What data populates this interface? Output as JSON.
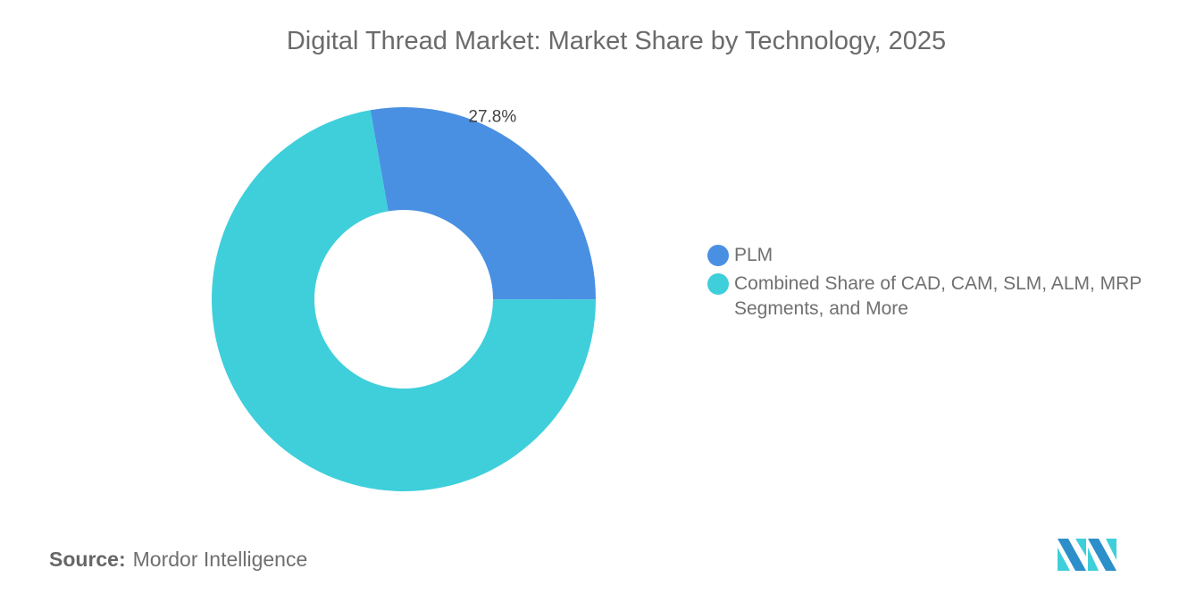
{
  "chart_data": {
    "type": "pie",
    "variant": "donut",
    "title": "Digital Thread Market: Market Share by Technology, 2025",
    "slices": [
      {
        "name": "PLM",
        "value": 27.8,
        "label": "27.8%",
        "color": "#4a90e2"
      },
      {
        "name": "Combined Share of CAD, CAM, SLM, ALM, MRP Segments, and More",
        "value": 72.2,
        "label": "",
        "color": "#3ecfdb"
      }
    ],
    "legend_position": "right"
  },
  "source": {
    "label": "Source:",
    "value": "Mordor Intelligence"
  },
  "logo": {
    "text": "Mordor Intelligence",
    "colors": [
      "#2d8fc9",
      "#3ecfdb"
    ]
  }
}
